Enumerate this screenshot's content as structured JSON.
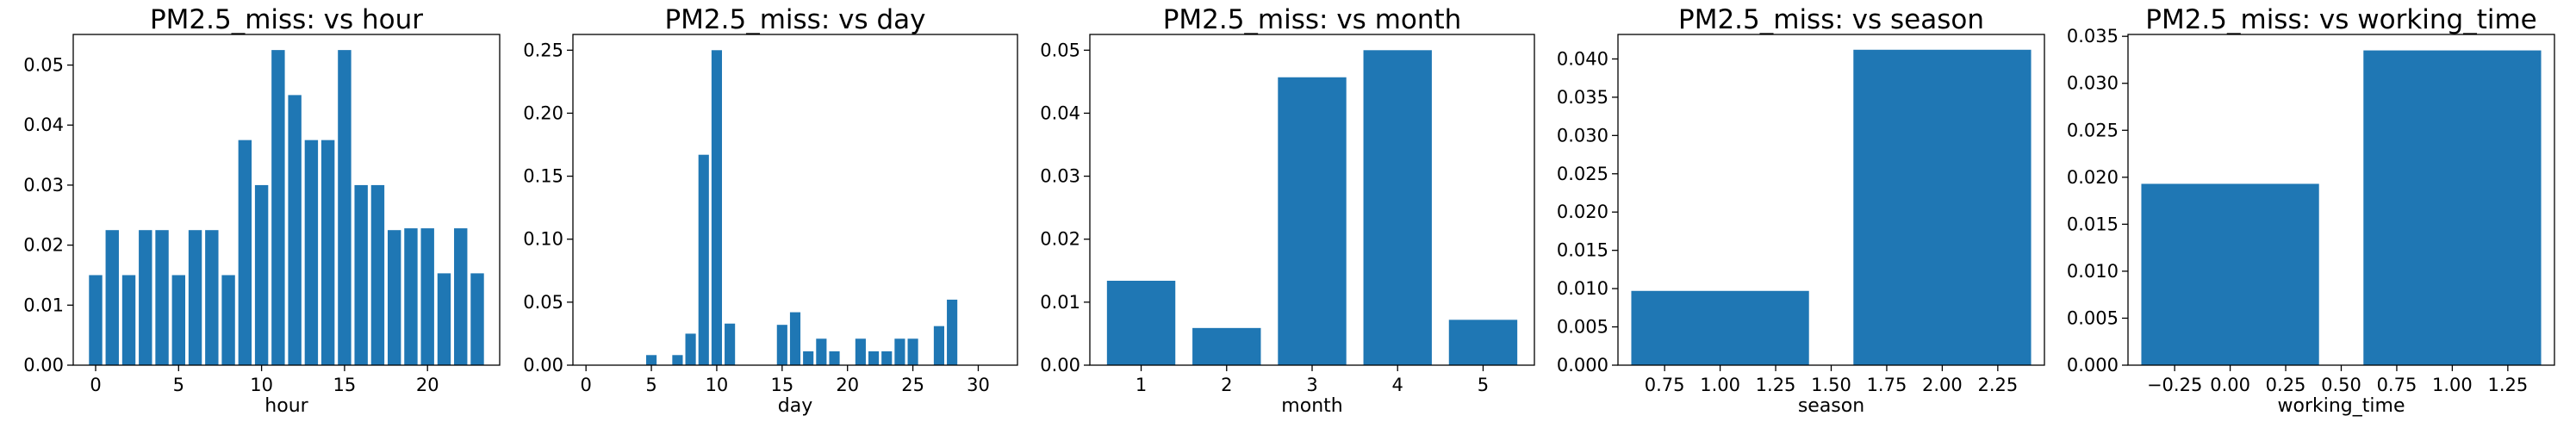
{
  "figure": {
    "bar_color": "#1f77b4"
  },
  "chart_data": [
    {
      "type": "bar",
      "title": "PM2.5_miss: vs hour",
      "xlabel": "hour",
      "x": [
        0,
        1,
        2,
        3,
        4,
        5,
        6,
        7,
        8,
        9,
        10,
        11,
        12,
        13,
        14,
        15,
        16,
        17,
        18,
        19,
        20,
        21,
        22,
        23
      ],
      "values": [
        0.015,
        0.0225,
        0.015,
        0.0225,
        0.0225,
        0.015,
        0.0225,
        0.0225,
        0.015,
        0.0375,
        0.03,
        0.0525,
        0.045,
        0.0375,
        0.0375,
        0.0525,
        0.03,
        0.03,
        0.0225,
        0.0228,
        0.0228,
        0.0153,
        0.0228,
        0.0153
      ],
      "bar_width": 0.8,
      "xlim": [
        -1.35,
        24.35
      ],
      "ylim": [
        0,
        0.0551
      ],
      "xticks": [
        0,
        5,
        10,
        15,
        20
      ],
      "xticklabels": [
        "0",
        "5",
        "10",
        "15",
        "20"
      ],
      "yticks": [
        0,
        0.01,
        0.02,
        0.03,
        0.04,
        0.05
      ],
      "yticklabels": [
        "0.00",
        "0.01",
        "0.02",
        "0.03",
        "0.04",
        "0.05"
      ]
    },
    {
      "type": "bar",
      "title": "PM2.5_miss: vs day",
      "xlabel": "day",
      "x": [
        1,
        2,
        3,
        4,
        5,
        6,
        7,
        8,
        9,
        10,
        11,
        12,
        13,
        14,
        15,
        16,
        17,
        18,
        19,
        20,
        21,
        22,
        23,
        24,
        25,
        26,
        27,
        28,
        29,
        30,
        31
      ],
      "values": [
        0,
        0,
        0,
        0,
        0.008,
        0,
        0.008,
        0.025,
        0.167,
        0.25,
        0.033,
        0,
        0,
        0,
        0.032,
        0.042,
        0.011,
        0.021,
        0.011,
        0,
        0.021,
        0.011,
        0.011,
        0.021,
        0.021,
        0,
        0.031,
        0.052,
        0,
        0,
        0
      ],
      "bar_width": 0.8,
      "xlim": [
        -1.0,
        33.0
      ],
      "ylim": [
        0,
        0.2625
      ],
      "xticks": [
        0,
        5,
        10,
        15,
        20,
        25,
        30
      ],
      "xticklabels": [
        "0",
        "5",
        "10",
        "15",
        "20",
        "25",
        "30"
      ],
      "yticks": [
        0,
        0.05,
        0.1,
        0.15,
        0.2,
        0.25
      ],
      "yticklabels": [
        "0.00",
        "0.05",
        "0.10",
        "0.15",
        "0.20",
        "0.25"
      ]
    },
    {
      "type": "bar",
      "title": "PM2.5_miss: vs month",
      "xlabel": "month",
      "x": [
        1,
        2,
        3,
        4,
        5
      ],
      "values": [
        0.0134,
        0.0059,
        0.0457,
        0.05,
        0.0072
      ],
      "bar_width": 0.8,
      "xlim": [
        0.4,
        5.6
      ],
      "ylim": [
        0,
        0.0525
      ],
      "xticks": [
        1,
        2,
        3,
        4,
        5
      ],
      "xticklabels": [
        "1",
        "2",
        "3",
        "4",
        "5"
      ],
      "yticks": [
        0,
        0.01,
        0.02,
        0.03,
        0.04,
        0.05
      ],
      "yticklabels": [
        "0.00",
        "0.01",
        "0.02",
        "0.03",
        "0.04",
        "0.05"
      ]
    },
    {
      "type": "bar",
      "title": "PM2.5_miss: vs season",
      "xlabel": "season",
      "x": [
        1,
        2
      ],
      "values": [
        0.0097,
        0.0412
      ],
      "bar_width": 0.8,
      "xlim": [
        0.54,
        2.46
      ],
      "ylim": [
        0,
        0.0432
      ],
      "xticks": [
        0.75,
        1.0,
        1.25,
        1.5,
        1.75,
        2.0,
        2.25
      ],
      "xticklabels": [
        "0.75",
        "1.00",
        "1.25",
        "1.50",
        "1.75",
        "2.00",
        "2.25"
      ],
      "yticks": [
        0,
        0.005,
        0.01,
        0.015,
        0.02,
        0.025,
        0.03,
        0.035,
        0.04
      ],
      "yticklabels": [
        "0.000",
        "0.005",
        "0.010",
        "0.015",
        "0.020",
        "0.025",
        "0.030",
        "0.035",
        "0.040"
      ]
    },
    {
      "type": "bar",
      "title": "PM2.5_miss: vs working_time",
      "xlabel": "working_time",
      "x": [
        0,
        1
      ],
      "values": [
        0.0193,
        0.0335
      ],
      "bar_width": 0.8,
      "xlim": [
        -0.46,
        1.46
      ],
      "ylim": [
        0,
        0.0352
      ],
      "xticks": [
        -0.25,
        0,
        0.25,
        0.5,
        0.75,
        1.0,
        1.25
      ],
      "xticklabels": [
        "−0.25",
        "0.00",
        "0.25",
        "0.50",
        "0.75",
        "1.00",
        "1.25"
      ],
      "yticks": [
        0,
        0.005,
        0.01,
        0.015,
        0.02,
        0.025,
        0.03,
        0.035
      ],
      "yticklabels": [
        "0.000",
        "0.005",
        "0.010",
        "0.015",
        "0.020",
        "0.025",
        "0.030",
        "0.035"
      ]
    }
  ]
}
